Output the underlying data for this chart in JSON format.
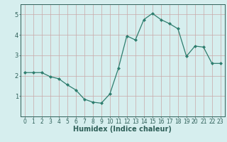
{
  "x": [
    0,
    1,
    2,
    3,
    4,
    5,
    6,
    7,
    8,
    9,
    10,
    11,
    12,
    13,
    14,
    15,
    16,
    17,
    18,
    19,
    20,
    21,
    22,
    23
  ],
  "y": [
    2.15,
    2.15,
    2.15,
    1.95,
    1.85,
    1.55,
    1.3,
    0.85,
    0.7,
    0.65,
    1.1,
    2.35,
    3.95,
    3.75,
    4.75,
    5.05,
    4.75,
    4.55,
    4.3,
    2.95,
    3.45,
    3.4,
    2.6,
    2.6
  ],
  "line_color": "#2e7d6e",
  "marker": "D",
  "marker_size": 2.0,
  "bg_color": "#d6eeee",
  "grid_color": "#c8a8a8",
  "xlabel": "Humidex (Indice chaleur)",
  "xlabel_fontsize": 7,
  "tick_fontsize": 5.5,
  "tick_color": "#2e5f58",
  "ylim": [
    0,
    5.5
  ],
  "xlim": [
    -0.5,
    23.5
  ],
  "yticks": [
    1,
    2,
    3,
    4,
    5
  ],
  "xticks": [
    0,
    1,
    2,
    3,
    4,
    5,
    6,
    7,
    8,
    9,
    10,
    11,
    12,
    13,
    14,
    15,
    16,
    17,
    18,
    19,
    20,
    21,
    22,
    23
  ]
}
